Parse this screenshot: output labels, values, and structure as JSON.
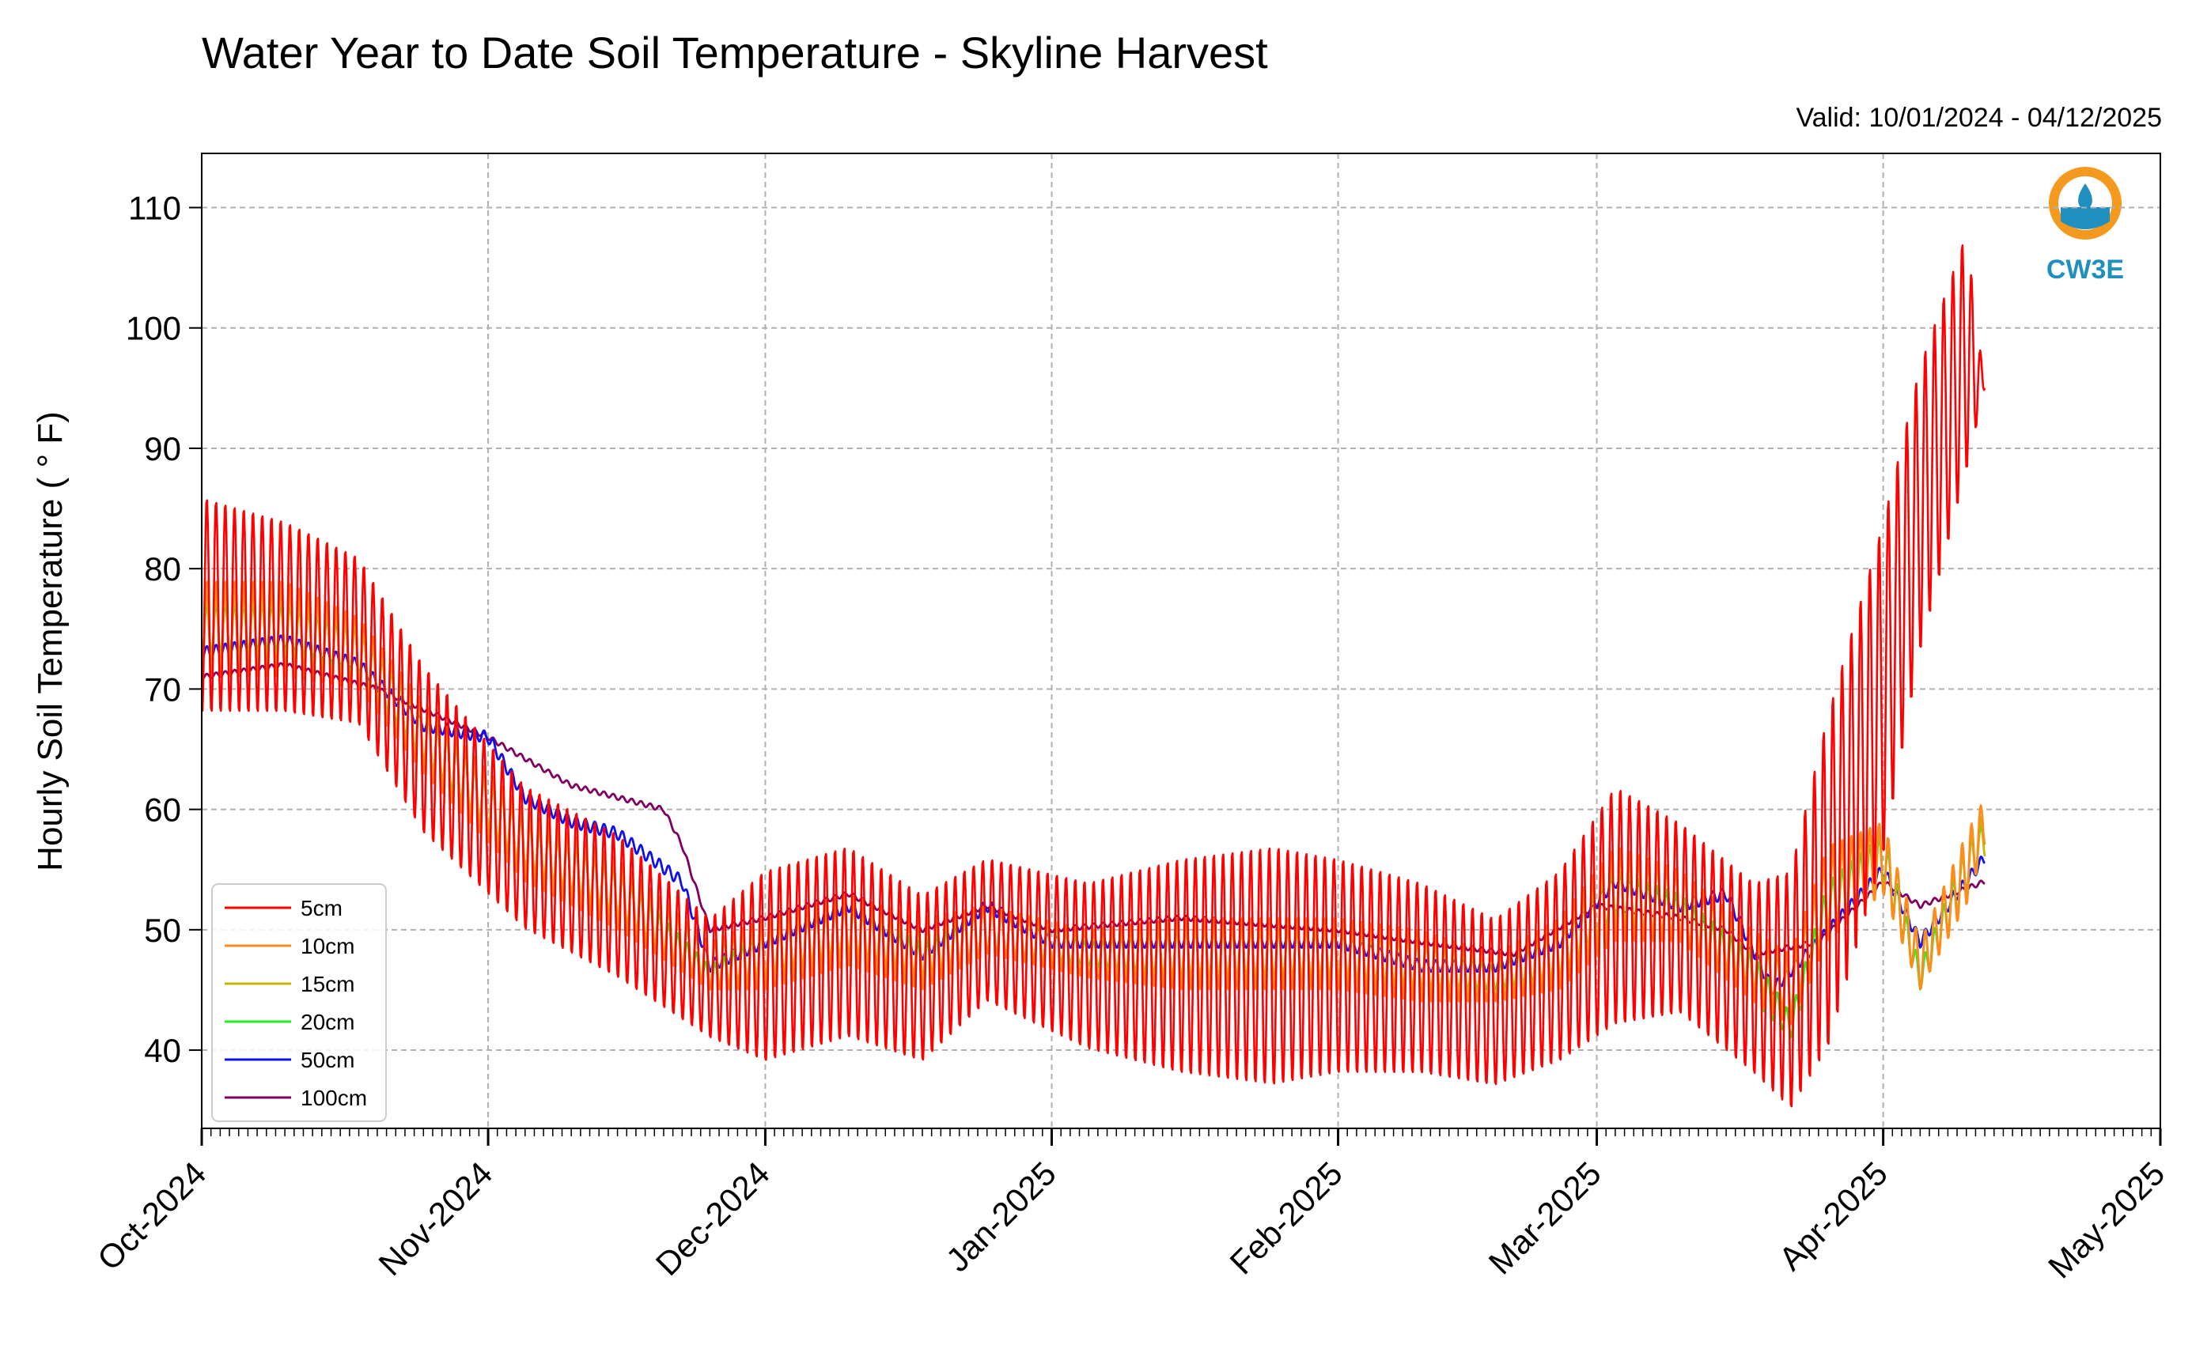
{
  "chart_data": {
    "type": "line",
    "title": "Water Year to Date Soil Temperature - Skyline Harvest",
    "subtitle": "Valid: 10/01/2024 - 04/12/2025",
    "xlabel": "",
    "ylabel": "Hourly Soil Temperature ( ° F)",
    "x_domain_dates": [
      "2024-10-01",
      "2025-05-01"
    ],
    "ylim": [
      33.5,
      114.5
    ],
    "yticks": [
      40,
      50,
      60,
      70,
      80,
      90,
      100,
      110
    ],
    "xticks": [
      {
        "date": "2024-10-01",
        "label": "Oct-2024"
      },
      {
        "date": "2024-11-01",
        "label": "Nov-2024"
      },
      {
        "date": "2024-12-01",
        "label": "Dec-2024"
      },
      {
        "date": "2025-01-01",
        "label": "Jan-2025"
      },
      {
        "date": "2025-02-01",
        "label": "Feb-2025"
      },
      {
        "date": "2025-03-01",
        "label": "Mar-2025"
      },
      {
        "date": "2025-04-01",
        "label": "Apr-2025"
      },
      {
        "date": "2025-05-01",
        "label": "May-2025"
      }
    ],
    "grid": true,
    "legend_position": "lower-left",
    "logo_text": "CW3E",
    "series": [
      {
        "name": "5cm",
        "color": "#ff0000",
        "x": [
          "2024-10-01",
          "2024-10-10",
          "2024-10-18",
          "2024-10-25",
          "2024-11-05",
          "2024-11-15",
          "2024-11-25",
          "2024-12-01",
          "2024-12-10",
          "2024-12-18",
          "2024-12-25",
          "2025-01-05",
          "2025-01-15",
          "2025-01-25",
          "2025-02-01",
          "2025-02-10",
          "2025-02-18",
          "2025-02-25",
          "2025-03-03",
          "2025-03-10",
          "2025-03-18",
          "2025-03-22",
          "2025-03-26",
          "2025-04-01",
          "2025-04-05",
          "2025-04-10",
          "2025-04-12"
        ],
        "mean": [
          77,
          76,
          74,
          65,
          56,
          52,
          46,
          47,
          49,
          46,
          50,
          47,
          47,
          47,
          47,
          46,
          44,
          47,
          52,
          51,
          46,
          45,
          54,
          70,
          85,
          98,
          95
        ],
        "amp": [
          9,
          8,
          7,
          7,
          6,
          6,
          5,
          8,
          8,
          7,
          6,
          7,
          9,
          10,
          9,
          8,
          7,
          8,
          10,
          8,
          8,
          10,
          14,
          14,
          12,
          10,
          0
        ]
      },
      {
        "name": "10cm",
        "color": "#ff8c1a",
        "x": [
          "2024-10-01",
          "2024-10-10",
          "2024-10-18",
          "2024-10-25",
          "2024-11-05",
          "2024-11-15",
          "2024-11-25",
          "2024-12-01",
          "2024-12-10",
          "2024-12-18",
          "2024-12-25",
          "2025-01-05",
          "2025-01-15",
          "2025-01-25",
          "2025-02-01",
          "2025-02-10",
          "2025-02-18",
          "2025-02-25",
          "2025-03-03",
          "2025-03-10",
          "2025-03-18",
          "2025-03-22",
          "2025-03-26",
          "2025-04-01",
          "2025-04-05",
          "2025-04-10",
          "2025-04-12"
        ],
        "mean": [
          75,
          75,
          73,
          66,
          57,
          53,
          47,
          48,
          50,
          48,
          50,
          48,
          48,
          48,
          48,
          47,
          46,
          48,
          53,
          52,
          47,
          45,
          53,
          56,
          47,
          55,
          59
        ],
        "amp": [
          4,
          4,
          3,
          3,
          3,
          3,
          2,
          3,
          3,
          3,
          2,
          2,
          3,
          3,
          3,
          3,
          2,
          3,
          4,
          3,
          3,
          3,
          4,
          3,
          2,
          3,
          2
        ]
      },
      {
        "name": "15cm",
        "color": "#c8b400",
        "x": [
          "2024-10-01",
          "2024-10-10",
          "2024-10-18",
          "2024-10-25",
          "2024-11-05",
          "2024-11-15",
          "2024-11-25",
          "2024-12-01",
          "2024-12-10",
          "2024-12-18",
          "2024-12-25",
          "2025-01-05",
          "2025-01-15",
          "2025-01-25",
          "2025-02-01",
          "2025-02-10",
          "2025-02-18",
          "2025-02-25",
          "2025-03-03",
          "2025-03-10",
          "2025-03-18",
          "2025-03-22",
          "2025-03-26",
          "2025-04-01",
          "2025-04-05",
          "2025-04-10",
          "2025-04-12"
        ],
        "mean": [
          75,
          75,
          73,
          66,
          57,
          53,
          47,
          48,
          50,
          48,
          50,
          48,
          48,
          48,
          48,
          47,
          46,
          48,
          53,
          52,
          47,
          45,
          53,
          56,
          47,
          55,
          58
        ],
        "amp": [
          3,
          3,
          3,
          3,
          2,
          2,
          2,
          2,
          2,
          2,
          2,
          2,
          2,
          2,
          2,
          2,
          2,
          2,
          3,
          3,
          2,
          2,
          3,
          3,
          2,
          2,
          2
        ]
      },
      {
        "name": "20cm",
        "color": "#22ee22",
        "x": [
          "2024-10-01",
          "2024-10-10",
          "2024-10-18",
          "2024-10-25",
          "2024-11-05",
          "2024-11-15",
          "2024-11-25",
          "2024-12-01",
          "2024-12-10",
          "2024-12-18",
          "2024-12-25",
          "2025-01-05",
          "2025-01-15",
          "2025-01-25",
          "2025-02-01",
          "2025-02-10",
          "2025-02-18",
          "2025-02-25",
          "2025-03-03",
          "2025-03-10",
          "2025-03-18",
          "2025-03-22",
          "2025-03-26",
          "2025-04-01",
          "2025-04-05",
          "2025-04-10",
          "2025-04-12"
        ],
        "mean": [
          75,
          75,
          73,
          66,
          57,
          53,
          46,
          48,
          50,
          47,
          50,
          48,
          48,
          48,
          48,
          47,
          46,
          48,
          53,
          51,
          46,
          42,
          52,
          56,
          46,
          55,
          58
        ],
        "amp": [
          2,
          2,
          2,
          2,
          2,
          2,
          1,
          2,
          2,
          2,
          2,
          1,
          2,
          2,
          2,
          2,
          1,
          2,
          2,
          2,
          2,
          1,
          2,
          2,
          1,
          2,
          1
        ]
      },
      {
        "name": "50cm",
        "color": "#1010ee",
        "x": [
          "2024-10-01",
          "2024-10-10",
          "2024-10-18",
          "2024-10-25",
          "2024-11-01",
          "2024-11-05",
          "2024-11-10",
          "2024-11-15",
          "2024-11-22",
          "2024-11-25",
          "2024-12-01",
          "2024-12-10",
          "2024-12-18",
          "2024-12-25",
          "2025-01-01",
          "2025-01-10",
          "2025-01-20",
          "2025-02-01",
          "2025-02-10",
          "2025-02-18",
          "2025-02-25",
          "2025-03-03",
          "2025-03-10",
          "2025-03-15",
          "2025-03-20",
          "2025-03-25",
          "2025-04-01",
          "2025-04-05",
          "2025-04-10",
          "2025-04-12"
        ],
        "mean": [
          73,
          74,
          72,
          67,
          66,
          61,
          59,
          58,
          54,
          47,
          49,
          52,
          48,
          52,
          49,
          49,
          49,
          49,
          47,
          47,
          49,
          54,
          52,
          53,
          45,
          49,
          55,
          49,
          54,
          56
        ],
        "amp": [
          0.5,
          0.5,
          0.5,
          0.5,
          0.5,
          0.5,
          0.5,
          0.5,
          0.5,
          0.5,
          0.5,
          0.5,
          0.5,
          0.5,
          0.5,
          0.5,
          0.5,
          0.5,
          0.5,
          0.5,
          0.5,
          0.5,
          0.5,
          0.5,
          0.5,
          0.5,
          0.5,
          0.5,
          0.5,
          0.5
        ]
      },
      {
        "name": "100cm",
        "color": "#800060",
        "x": [
          "2024-10-01",
          "2024-10-10",
          "2024-10-20",
          "2024-11-01",
          "2024-11-10",
          "2024-11-20",
          "2024-11-22",
          "2024-11-25",
          "2024-12-01",
          "2024-12-10",
          "2024-12-18",
          "2024-12-25",
          "2025-01-01",
          "2025-01-15",
          "2025-02-01",
          "2025-02-10",
          "2025-02-20",
          "2025-03-01",
          "2025-03-10",
          "2025-03-15",
          "2025-03-18",
          "2025-03-25",
          "2025-04-01",
          "2025-04-05",
          "2025-04-12"
        ],
        "mean": [
          71,
          72,
          70,
          66,
          62,
          60,
          57,
          50,
          51,
          53,
          50,
          52,
          50,
          51,
          50,
          49,
          48,
          52,
          51,
          50,
          48,
          49,
          54,
          52,
          54
        ],
        "amp": [
          0.2,
          0.2,
          0.2,
          0.2,
          0.2,
          0.2,
          0.2,
          0.2,
          0.2,
          0.2,
          0.2,
          0.2,
          0.2,
          0.2,
          0.2,
          0.2,
          0.2,
          0.2,
          0.2,
          0.2,
          0.2,
          0.2,
          0.2,
          0.2,
          0.2
        ]
      }
    ]
  }
}
